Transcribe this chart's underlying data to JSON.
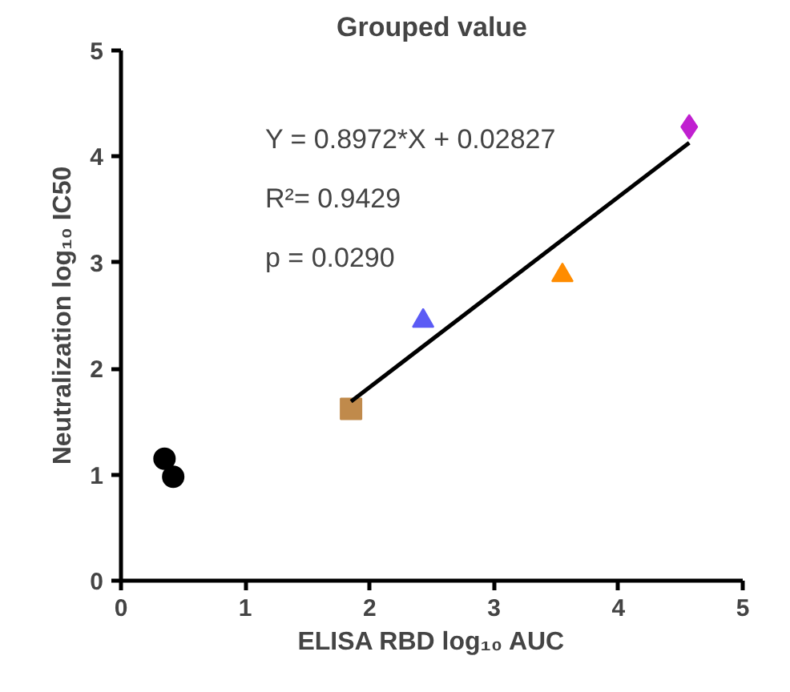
{
  "chart_data": {
    "type": "scatter",
    "title": "Grouped value",
    "xlabel": "ELISA RBD log₁₀ AUC",
    "ylabel": "Neutralization log₁₀ IC50",
    "xlim": [
      0,
      5
    ],
    "ylim": [
      0,
      5
    ],
    "xticks": [
      0,
      1,
      2,
      3,
      4,
      5
    ],
    "yticks": [
      0,
      1,
      2,
      3,
      4,
      5
    ],
    "grid": false,
    "series": [
      {
        "color": "#000000",
        "marker": "circle",
        "x": [
          0.35,
          0.42
        ],
        "values": [
          1.15,
          0.98
        ]
      },
      {
        "color": "#c08a4b",
        "marker": "square",
        "x": [
          1.85
        ],
        "values": [
          1.62
        ]
      },
      {
        "color": "#5b5bf5",
        "marker": "triangle",
        "x": [
          2.43
        ],
        "values": [
          2.45
        ]
      },
      {
        "color": "#ff8c00",
        "marker": "triangle",
        "x": [
          3.55
        ],
        "values": [
          2.88
        ]
      },
      {
        "color": "#c020d0",
        "marker": "diamond",
        "x": [
          4.57
        ],
        "values": [
          4.28
        ]
      },
      {
        "type": "line",
        "color": "#000000",
        "marker": "none",
        "line_style": "solid",
        "x": [
          1.85,
          4.57
        ],
        "values": [
          1.69,
          4.13
        ]
      }
    ],
    "annotations": [
      "Y = 0.8972*X + 0.02827",
      "R²=  0.9429",
      "p =   0.0290"
    ]
  }
}
